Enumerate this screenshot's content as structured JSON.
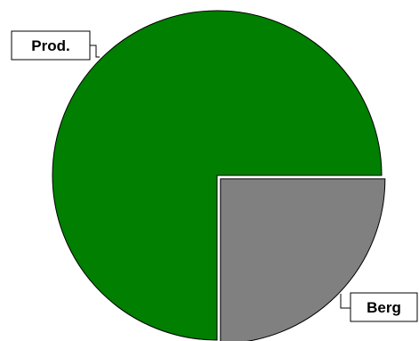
{
  "chart_data": {
    "type": "pie",
    "title": "",
    "legend": "none",
    "slices": [
      {
        "label": "Prod.",
        "value": 75,
        "color": "#007F00",
        "exploded": false
      },
      {
        "label": "Berg",
        "value": 25,
        "color": "#808080",
        "exploded": true
      }
    ]
  }
}
